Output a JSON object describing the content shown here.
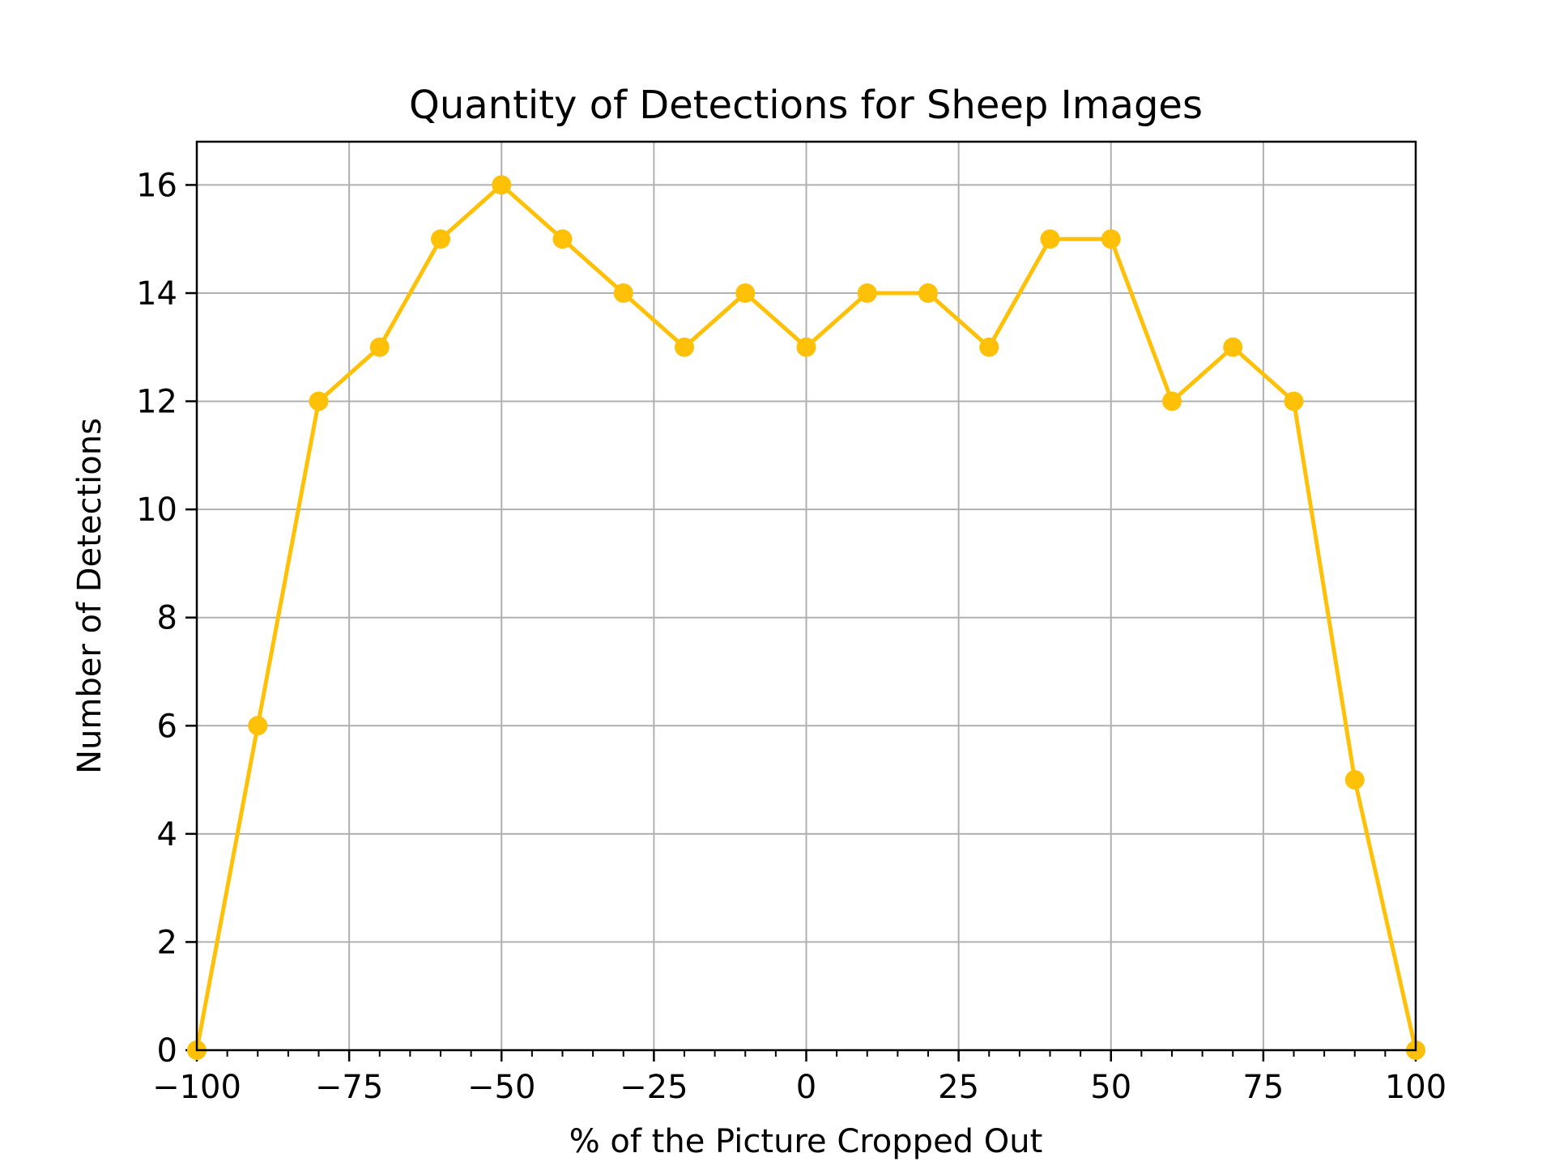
{
  "chart_data": {
    "type": "line",
    "title": "Quantity of Detections for Sheep Images",
    "xlabel": "% of the Picture Cropped Out",
    "ylabel": "Number of Detections",
    "xlim": [
      -100,
      100
    ],
    "ylim": [
      0,
      16.8
    ],
    "xticks": [
      -100,
      -75,
      -50,
      -25,
      0,
      25,
      50,
      75,
      100
    ],
    "xtick_labels": [
      "−100",
      "−75",
      "−50",
      "−25",
      "0",
      "25",
      "50",
      "75",
      "100"
    ],
    "yticks": [
      0,
      2,
      4,
      6,
      8,
      10,
      12,
      14,
      16
    ],
    "ytick_labels": [
      "0",
      "2",
      "4",
      "6",
      "8",
      "10",
      "12",
      "14",
      "16"
    ],
    "x_minor_tick_step": 5,
    "grid": true,
    "color": "#FFC107",
    "series": [
      {
        "x": [
          -100,
          -90,
          -80,
          -70,
          -60,
          -50,
          -40,
          -30,
          -20,
          -10,
          0,
          10,
          20,
          30,
          40,
          50,
          60,
          70,
          80,
          90,
          100
        ],
        "y": [
          0,
          6,
          12,
          13,
          15,
          16,
          15,
          14,
          13,
          14,
          13,
          14,
          14,
          13,
          15,
          15,
          12,
          13,
          12,
          5,
          0
        ]
      }
    ]
  }
}
